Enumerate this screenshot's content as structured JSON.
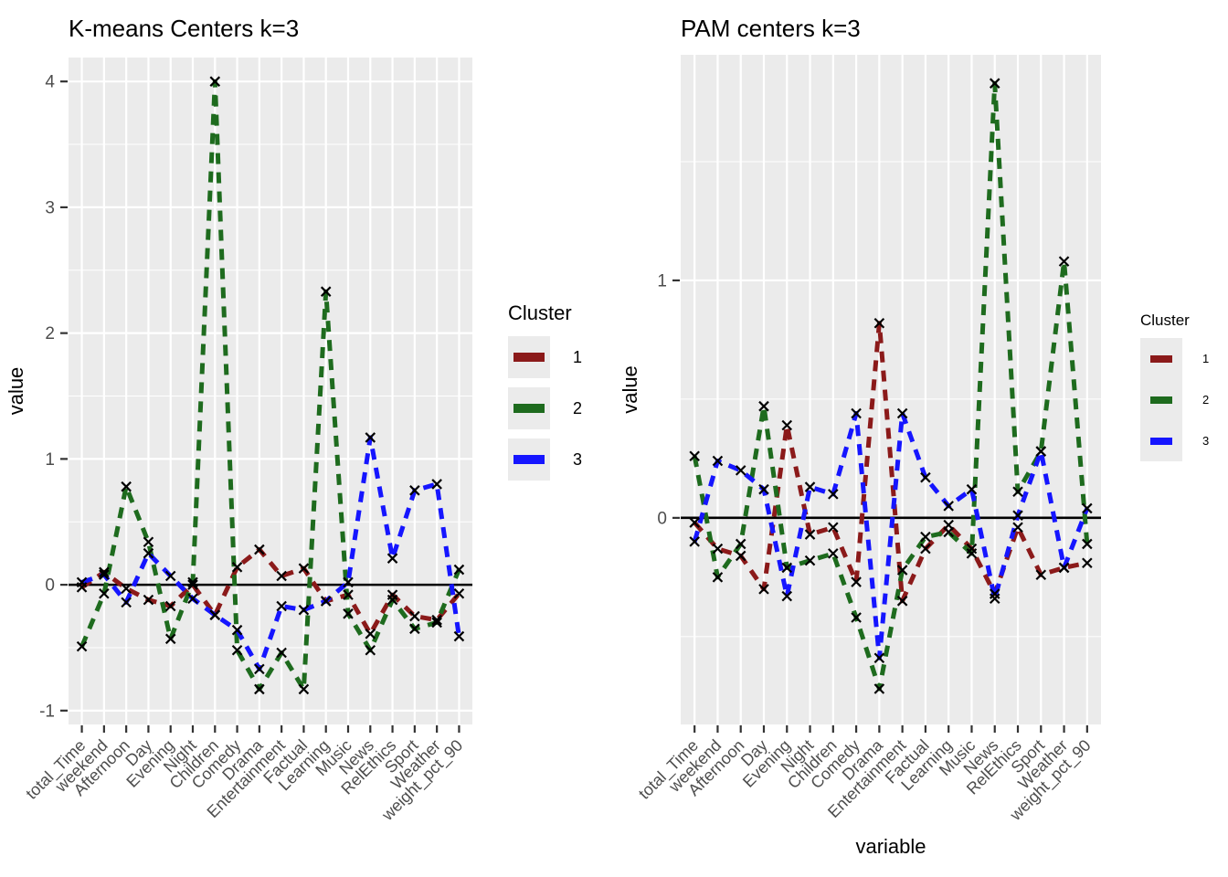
{
  "page": {
    "background": "#FFFFFF"
  },
  "colors": {
    "cluster1": "#8B1A1A",
    "cluster2": "#1E6B1E",
    "cluster3": "#1515FF",
    "panel_bg": "#EBEBEB",
    "grid": "#FFFFFF",
    "axis_text": "#4D4D4D",
    "title_text": "#000000",
    "marker": "#000000",
    "zero_line": "#000000"
  },
  "legend": {
    "title": "Cluster",
    "items": [
      {
        "label": "1",
        "color": "cluster1"
      },
      {
        "label": "2",
        "color": "cluster2"
      },
      {
        "label": "3",
        "color": "cluster3"
      }
    ]
  },
  "chart_data": [
    {
      "type": "line",
      "title": "K-means Centers k=3",
      "xlabel": "",
      "ylabel": "value",
      "legend_position": "right",
      "grid": true,
      "line_style": "dashed",
      "marker": "x",
      "y_ticks": [
        -1,
        0,
        1,
        2,
        3,
        4
      ],
      "ylim": [
        -1.11,
        4.19
      ],
      "categories": [
        "total_Time",
        "weekend",
        "Afternoon",
        "Day",
        "Evening",
        "Night",
        "Children",
        "Comedy",
        "Drama",
        "Entertainment",
        "Factual",
        "Learning",
        "Music",
        "News",
        "RelEthics",
        "Sport",
        "Weather",
        "weight_pct_90"
      ],
      "series": [
        {
          "name": "1",
          "color": "cluster1",
          "values": [
            -0.02,
            0.1,
            -0.03,
            -0.12,
            -0.17,
            0.0,
            -0.24,
            0.14,
            0.28,
            0.07,
            0.13,
            -0.13,
            -0.08,
            -0.39,
            -0.08,
            -0.25,
            -0.28,
            -0.07
          ]
        },
        {
          "name": "2",
          "color": "cluster2",
          "values": [
            -0.49,
            -0.07,
            0.78,
            0.34,
            -0.43,
            0.02,
            4.0,
            -0.52,
            -0.83,
            -0.54,
            -0.83,
            2.33,
            -0.23,
            -0.52,
            -0.12,
            -0.35,
            -0.3,
            0.12
          ]
        },
        {
          "name": "3",
          "color": "cluster3",
          "values": [
            0.02,
            0.08,
            -0.14,
            0.25,
            0.07,
            -0.11,
            -0.24,
            -0.36,
            -0.67,
            -0.17,
            -0.2,
            -0.13,
            0.02,
            1.17,
            0.21,
            0.75,
            0.8,
            -0.41
          ]
        }
      ]
    },
    {
      "type": "line",
      "title": "PAM centers k=3",
      "xlabel": "variable",
      "ylabel": "value",
      "legend_position": "right",
      "grid": true,
      "line_style": "dashed",
      "marker": "x",
      "y_ticks": [
        0,
        1
      ],
      "ylim": [
        -0.87,
        1.95
      ],
      "categories": [
        "total_Time",
        "weekend",
        "Afternoon",
        "Day",
        "Evening",
        "Night",
        "Children",
        "Comedy",
        "Drama",
        "Entertainment",
        "Factual",
        "Learning",
        "Music",
        "News",
        "RelEthics",
        "Sport",
        "Weather",
        "weight_pct_90"
      ],
      "series": [
        {
          "name": "1",
          "color": "cluster1",
          "values": [
            -0.02,
            -0.13,
            -0.16,
            -0.3,
            0.39,
            -0.07,
            -0.04,
            -0.27,
            0.82,
            -0.35,
            -0.13,
            -0.03,
            -0.13,
            -0.32,
            -0.04,
            -0.24,
            -0.21,
            -0.19
          ]
        },
        {
          "name": "2",
          "color": "cluster2",
          "values": [
            0.26,
            -0.25,
            -0.11,
            0.47,
            -0.21,
            -0.18,
            -0.15,
            -0.42,
            -0.72,
            -0.22,
            -0.08,
            -0.06,
            -0.15,
            1.83,
            0.11,
            0.28,
            1.08,
            -0.11
          ]
        },
        {
          "name": "3",
          "color": "cluster3",
          "values": [
            -0.1,
            0.24,
            0.2,
            0.12,
            -0.33,
            0.13,
            0.1,
            0.44,
            -0.59,
            0.44,
            0.17,
            0.05,
            0.12,
            -0.34,
            0.01,
            0.28,
            -0.21,
            0.04
          ]
        }
      ]
    }
  ]
}
